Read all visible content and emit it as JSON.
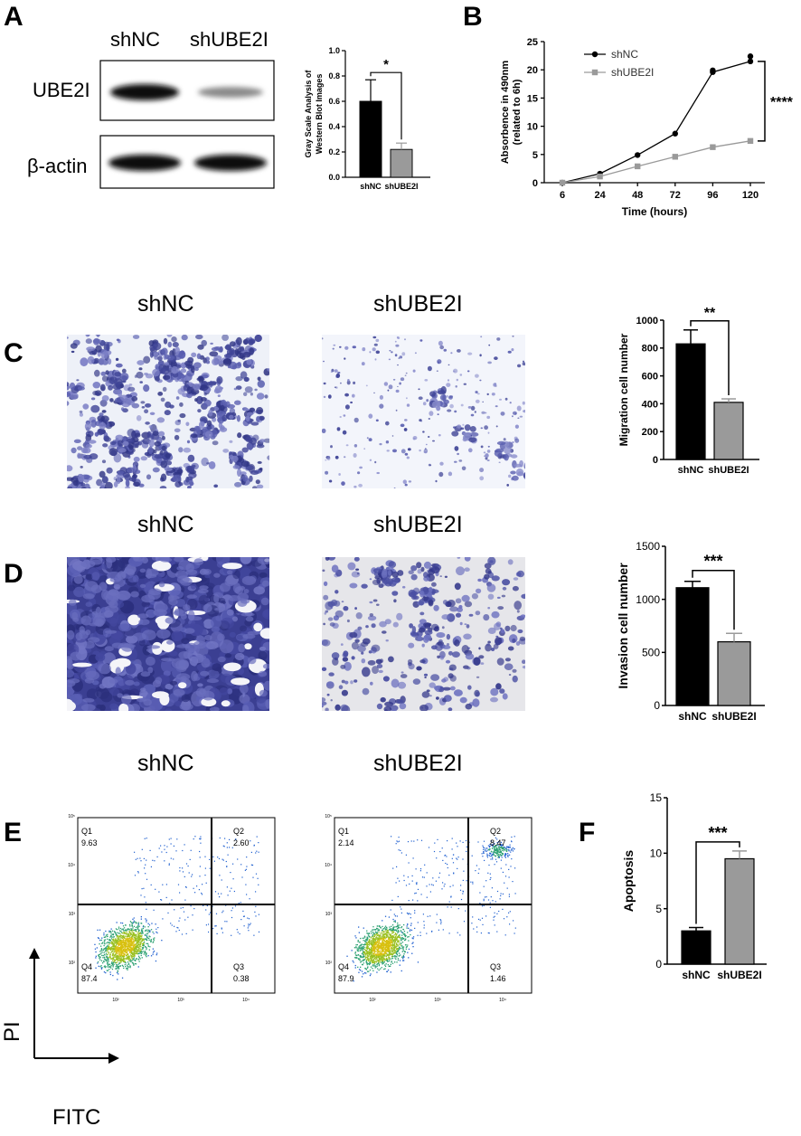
{
  "figure": {
    "panel_labels": [
      "A",
      "B",
      "C",
      "D",
      "E",
      "F"
    ]
  },
  "panel_a": {
    "blot": {
      "lane_labels": [
        "shNC",
        "shUBE2I"
      ],
      "row_labels": [
        "UBE2I",
        "β-actin"
      ]
    },
    "chart_data": {
      "type": "bar",
      "categories": [
        "shNC",
        "shUBE2I"
      ],
      "values": [
        0.6,
        0.22
      ],
      "errors": [
        0.17,
        0.05
      ],
      "ylabel": "Gray Scale Analysis of Western Blot Images",
      "ylabel_lines": [
        "Gray Scale Analysis of",
        "Western Blot Images"
      ],
      "ylim": [
        0,
        1.0
      ],
      "yticks": [
        "0.0",
        "0.2",
        "0.4",
        "0.6",
        "0.8",
        "1.0"
      ],
      "significance": "*",
      "colors": [
        "#000000",
        "#9a9a9a"
      ]
    }
  },
  "panel_b": {
    "chart_data": {
      "type": "line",
      "x": [
        6,
        24,
        48,
        72,
        96,
        120
      ],
      "xticks": [
        "6",
        "24",
        "48",
        "72",
        "96",
        "120"
      ],
      "series": [
        {
          "name": "shNC",
          "values": [
            0,
            1.6,
            4.9,
            8.7,
            19.6,
            21.5
          ],
          "color": "#000000",
          "marker": "circle"
        },
        {
          "name": "shUBE2I",
          "values": [
            0,
            1.1,
            2.9,
            4.6,
            6.3,
            7.4
          ],
          "color": "#9a9a9a",
          "marker": "square"
        }
      ],
      "xlabel": "Time (hours)",
      "ylabel": "Absorbence in 490nm (related to 6h)",
      "ylabel_lines": [
        "Absorbence in 490nm",
        "(related to 6h)"
      ],
      "ylim": [
        0,
        25
      ],
      "yticks": [
        "0",
        "5",
        "10",
        "15",
        "20",
        "25"
      ],
      "significance": "****",
      "legend_position": "top-left"
    }
  },
  "panel_c": {
    "image_labels": [
      "shNC",
      "shUBE2I"
    ],
    "chart_data": {
      "type": "bar",
      "categories": [
        "shNC",
        "shUBE2I"
      ],
      "values": [
        830,
        410
      ],
      "errors": [
        100,
        25
      ],
      "ylabel": "Migration cell number",
      "ylim": [
        0,
        1000
      ],
      "yticks": [
        "0",
        "200",
        "400",
        "600",
        "800",
        "1000"
      ],
      "significance": "**",
      "colors": [
        "#000000",
        "#9a9a9a"
      ]
    }
  },
  "panel_d": {
    "image_labels": [
      "shNC",
      "shUBE2I"
    ],
    "chart_data": {
      "type": "bar",
      "categories": [
        "shNC",
        "shUBE2I"
      ],
      "values": [
        1110,
        600
      ],
      "errors": [
        60,
        80
      ],
      "ylabel": "Invasion cell number",
      "ylim": [
        0,
        1500
      ],
      "yticks": [
        "0",
        "500",
        "1000",
        "1500"
      ],
      "significance": "***",
      "colors": [
        "#000000",
        "#9a9a9a"
      ]
    }
  },
  "panel_e": {
    "plot_labels": [
      "shNC",
      "shUBE2I"
    ],
    "axis_labels": {
      "y": "PI",
      "x": "FITC"
    },
    "plots": [
      {
        "quadrants": [
          {
            "name": "Q1",
            "value": "9.63"
          },
          {
            "name": "Q2",
            "value": "2.60"
          },
          {
            "name": "Q3",
            "value": "0.38"
          },
          {
            "name": "Q4",
            "value": "87.4"
          }
        ]
      },
      {
        "quadrants": [
          {
            "name": "Q1",
            "value": "2.14"
          },
          {
            "name": "Q2",
            "value": "8.47"
          },
          {
            "name": "Q3",
            "value": "1.46"
          },
          {
            "name": "Q4",
            "value": "87.9"
          }
        ]
      }
    ]
  },
  "panel_f": {
    "chart_data": {
      "type": "bar",
      "categories": [
        "shNC",
        "shUBE2I"
      ],
      "values": [
        3.0,
        9.5
      ],
      "errors": [
        0.3,
        0.7
      ],
      "ylabel": "Apoptosis",
      "ylim": [
        0,
        15
      ],
      "yticks": [
        "0",
        "5",
        "10",
        "15"
      ],
      "significance": "***",
      "colors": [
        "#000000",
        "#9a9a9a"
      ]
    }
  }
}
